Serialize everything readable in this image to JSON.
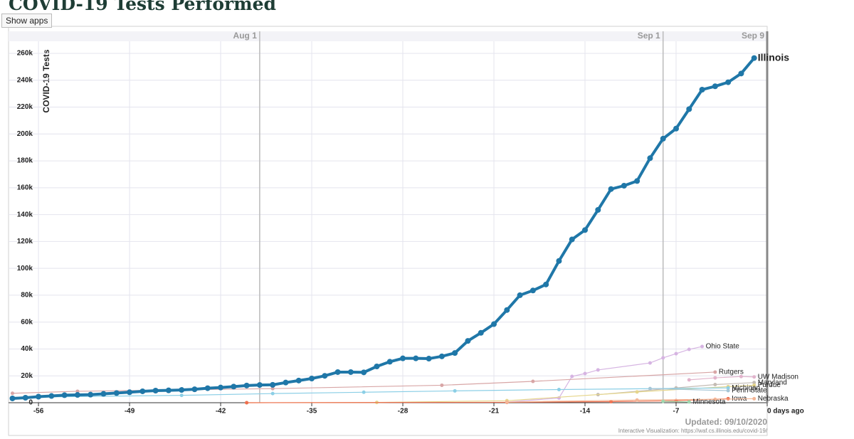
{
  "title": "COVID-19 Tests Performed",
  "tooltip": "Show apps",
  "chart_data": {
    "type": "line",
    "y_label": "COVID-19 Tests",
    "updated": "Updated: 09/10/2020",
    "credit": "Interactive Visualization: https://waf.cs.illinois.edu/covid-19/",
    "xlim": [
      -58.3,
      0
    ],
    "ylim": [
      0,
      269000
    ],
    "xticks": [
      -56,
      -49,
      -42,
      -35,
      -28,
      -21,
      -14,
      -7,
      {
        "value": 0,
        "label": "0 days ago"
      }
    ],
    "yticks": [
      0,
      {
        "value": 20000,
        "label": "20k"
      },
      {
        "value": 40000,
        "label": "40k"
      },
      {
        "value": 60000,
        "label": "60k"
      },
      {
        "value": 80000,
        "label": "80k"
      },
      {
        "value": 100000,
        "label": "100k"
      },
      {
        "value": 120000,
        "label": "120k"
      },
      {
        "value": 140000,
        "label": "140k"
      },
      {
        "value": 160000,
        "label": "160k"
      },
      {
        "value": 180000,
        "label": "180k"
      },
      {
        "value": 200000,
        "label": "200k"
      },
      {
        "value": 220000,
        "label": "220k"
      },
      {
        "value": 240000,
        "label": "240k"
      },
      {
        "value": 260000,
        "label": "260k"
      }
    ],
    "grid": true,
    "date_markers": [
      {
        "x": -39,
        "label": "Aug 1"
      },
      {
        "x": -8,
        "label": "Sep 1"
      },
      {
        "x": 0,
        "label": "Sep 9"
      }
    ],
    "series": [
      {
        "name": "Ohio State",
        "color": "#d6b4e2",
        "x": [
          -20,
          -16,
          -15,
          -14,
          -13,
          -9,
          -8,
          -7,
          -6,
          -5
        ],
        "values": [
          500,
          3500,
          19600,
          21700,
          24400,
          29600,
          33400,
          36500,
          39700,
          41800
        ]
      },
      {
        "name": "Rutgers",
        "color": "#d8a6a6",
        "x": [
          -58,
          -53,
          -38,
          -25,
          -18,
          -4
        ],
        "values": [
          7000,
          8500,
          10500,
          13000,
          15900,
          22800
        ]
      },
      {
        "name": "UW Madison",
        "color": "#e2b4cc",
        "x": [
          -6,
          -4,
          -2,
          -1
        ],
        "values": [
          17000,
          18500,
          19500,
          19200
        ]
      },
      {
        "name": "Maryland",
        "color": "#c4bcb4",
        "x": [
          -13,
          -7,
          -4,
          -1
        ],
        "values": [
          6000,
          11000,
          13500,
          15000
        ]
      },
      {
        "name": "Purdue",
        "color": "#e6d68c",
        "x": [
          -40,
          -30,
          -20,
          -10,
          -3,
          -1
        ],
        "values": [
          0,
          200,
          1500,
          8000,
          12000,
          13000
        ]
      },
      {
        "name": "Michigan",
        "color": "#8ccfe6",
        "x": [
          -58,
          -45,
          -38,
          -31,
          -24,
          -16,
          -3
        ],
        "values": [
          4000,
          5500,
          6800,
          7800,
          8800,
          9800,
          11000
        ]
      },
      {
        "name": "Penn State",
        "color": "#a6c6d6",
        "x": [
          -9,
          -3
        ],
        "values": [
          10500,
          9000
        ]
      },
      {
        "name": "Iowa",
        "color": "#ee6e4e",
        "x": [
          -40,
          -20,
          -12,
          -7,
          -3
        ],
        "values": [
          0,
          300,
          800,
          1500,
          3000
        ]
      },
      {
        "name": "Nebraska",
        "color": "#f4b696",
        "x": [
          -20,
          -10,
          -4,
          -1
        ],
        "values": [
          500,
          2000,
          2500,
          3000
        ]
      },
      {
        "name": "Minnesota",
        "color": "#9ed6ae",
        "x": [
          -8,
          -6
        ],
        "values": [
          1000,
          600
        ]
      },
      {
        "name": "Illinois",
        "color": "#1f77a8",
        "x": [
          -58,
          -57,
          -56,
          -55,
          -54,
          -53,
          -52,
          -51,
          -50,
          -49,
          -48,
          -47,
          -46,
          -45,
          -44,
          -43,
          -42,
          -41,
          -40,
          -39,
          -38,
          -37,
          -36,
          -35,
          -34,
          -33,
          -32,
          -31,
          -30,
          -29,
          -28,
          -27,
          -26,
          -25,
          -24,
          -23,
          -22,
          -21,
          -20,
          -19,
          -18,
          -17,
          -16,
          -15,
          -14,
          -13,
          -12,
          -11,
          -10,
          -9,
          -8,
          -7,
          -6,
          -5,
          -4,
          -3,
          -2,
          -1
        ],
        "values": [
          3200,
          3700,
          4500,
          5000,
          5600,
          5800,
          6000,
          6600,
          7200,
          7800,
          8500,
          9000,
          9200,
          9500,
          10000,
          10800,
          11300,
          12000,
          12800,
          13200,
          13300,
          15000,
          16500,
          18000,
          20000,
          22800,
          22800,
          22600,
          27000,
          30500,
          33000,
          33000,
          32800,
          34500,
          37000,
          46000,
          52000,
          58500,
          69000,
          80000,
          83500,
          88000,
          105500,
          121500,
          128500,
          143500,
          159000,
          161500,
          165000,
          182000,
          196500,
          204000,
          218500,
          233000,
          235500,
          238500,
          245000,
          256500
        ]
      }
    ]
  }
}
